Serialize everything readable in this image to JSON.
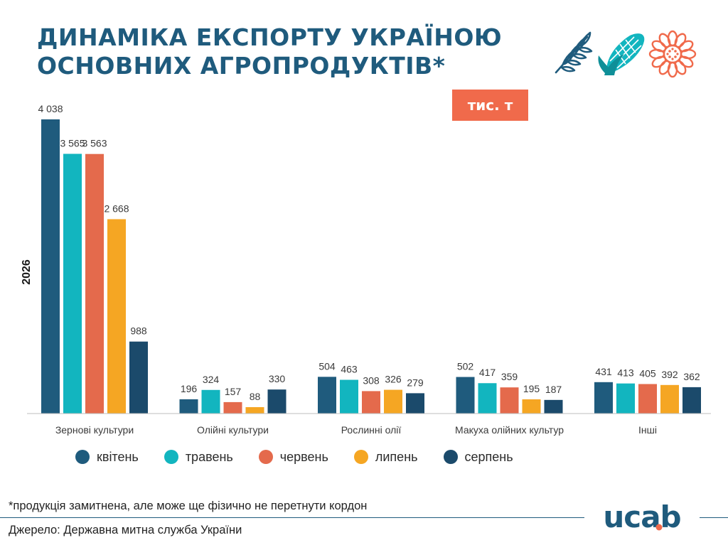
{
  "title": {
    "line1": "ДИНАМІКА ЕКСПОРТУ УКРАЇНОЮ",
    "line2": "ОСНОВНИХ АГРОПРОДУКТІВ*"
  },
  "unit_label": "тис. т",
  "year_label": "2026",
  "icons": [
    "wheat-icon",
    "corn-icon",
    "sunflower-icon"
  ],
  "colors": {
    "title": "#1f5b7d",
    "unit_badge": "#f06a4b",
    "logo": "#1f5b7d",
    "logo_accent": "#f06a4b"
  },
  "footnote": "*продукція замитнена, але може ще фізично не перетнути кордон",
  "source": "Джерело: Державна митна служба України",
  "logo_text": "ucab",
  "chart_data": {
    "type": "bar",
    "categories": [
      "Зернові культури",
      "Олійні культури",
      "Рослинні олії",
      "Макуха олійних культур",
      "Інші"
    ],
    "series": [
      {
        "name": "квітень",
        "color": "#1f5b7d",
        "values": [
          4038,
          196,
          504,
          502,
          431
        ]
      },
      {
        "name": "травень",
        "color": "#12b5bf",
        "values": [
          3565,
          324,
          463,
          417,
          413
        ]
      },
      {
        "name": "червень",
        "color": "#e46a4c",
        "values": [
          3563,
          157,
          308,
          359,
          405
        ]
      },
      {
        "name": "липень",
        "color": "#f5a623",
        "values": [
          2668,
          88,
          326,
          195,
          392
        ]
      },
      {
        "name": "серпень",
        "color": "#1b4a6b",
        "values": [
          988,
          330,
          279,
          187,
          362
        ]
      }
    ],
    "value_labels": [
      [
        "4 038",
        "196",
        "504",
        "502",
        "431"
      ],
      [
        "3 565",
        "324",
        "463",
        "417",
        "413"
      ],
      [
        "3 563",
        "157",
        "308",
        "359",
        "405"
      ],
      [
        "2 668",
        "88",
        "326",
        "195",
        "392"
      ],
      [
        "988",
        "330",
        "279",
        "187",
        "362"
      ]
    ],
    "ylim": [
      0,
      4038
    ],
    "grid": false,
    "legend_position": "bottom"
  }
}
